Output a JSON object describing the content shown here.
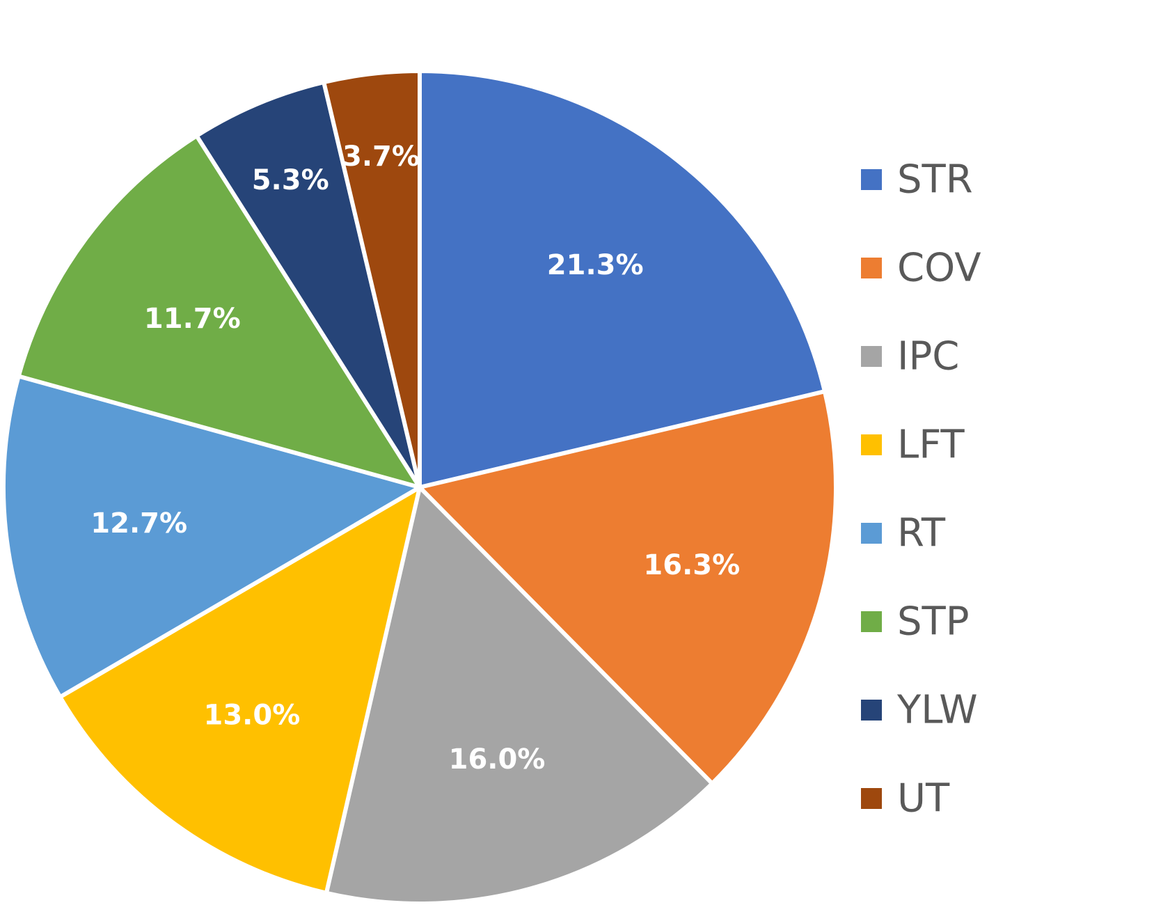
{
  "chart_data": {
    "type": "pie",
    "title": "",
    "start_angle_deg": 0,
    "direction": "clockwise",
    "legend_position": "right",
    "slices": [
      {
        "name": "STR",
        "value": 21.3,
        "label": "21.3%",
        "color": "#4472C4"
      },
      {
        "name": "COV",
        "value": 16.3,
        "label": "16.3%",
        "color": "#ED7D31"
      },
      {
        "name": "IPC",
        "value": 16.0,
        "label": "16.0%",
        "color": "#A5A5A5"
      },
      {
        "name": "LFT",
        "value": 13.0,
        "label": "13.0%",
        "color": "#FFC000"
      },
      {
        "name": "RT",
        "value": 12.7,
        "label": "12.7%",
        "color": "#5B9BD5"
      },
      {
        "name": "STP",
        "value": 11.7,
        "label": "11.7%",
        "color": "#70AD47"
      },
      {
        "name": "YLW",
        "value": 5.3,
        "label": "5.3%",
        "color": "#264478"
      },
      {
        "name": "UT",
        "value": 3.7,
        "label": "3.7%",
        "color": "#9E480E"
      }
    ]
  }
}
